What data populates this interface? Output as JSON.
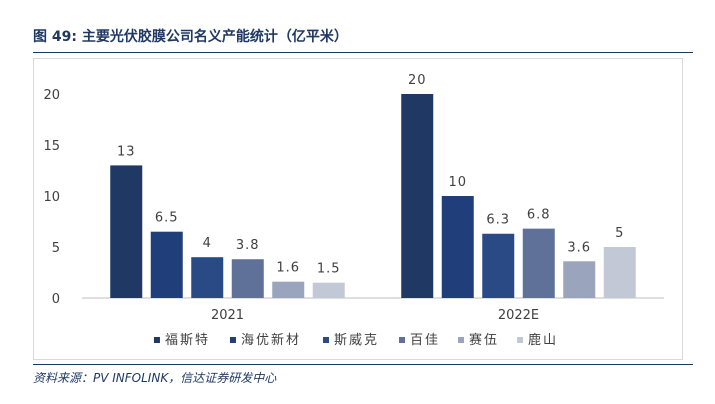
{
  "figure": {
    "title": "图 49:  主要光伏胶膜公司名义产能统计（亿平米）",
    "source": "资料来源：PV INFOLINK，信达证券研发中心"
  },
  "chart_data": {
    "type": "bar",
    "categories": [
      "2021",
      "2022E"
    ],
    "series": [
      {
        "name": "福斯特",
        "values": [
          13,
          20
        ],
        "labels": [
          "13",
          "20"
        ],
        "color": "#1f3864"
      },
      {
        "name": "海优新材",
        "values": [
          6.5,
          10
        ],
        "labels": [
          "6.5",
          "10"
        ],
        "color": "#203f7a"
      },
      {
        "name": "斯威克",
        "values": [
          4,
          6.3
        ],
        "labels": [
          "4",
          "6.3"
        ],
        "color": "#2a4a86"
      },
      {
        "name": "百佳",
        "values": [
          3.8,
          6.8
        ],
        "labels": [
          "3.8",
          "6.8"
        ],
        "color": "#5f7099"
      },
      {
        "name": "赛伍",
        "values": [
          1.6,
          3.6
        ],
        "labels": [
          "1.6",
          "3.6"
        ],
        "color": "#9aa4bd"
      },
      {
        "name": "鹿山",
        "values": [
          1.5,
          5
        ],
        "labels": [
          "1.5",
          "5"
        ],
        "color": "#c3c8d6"
      }
    ],
    "ylim": [
      0,
      20
    ],
    "yticks": [
      "0",
      "5",
      "10",
      "15",
      "20"
    ],
    "grid": false,
    "legend": "bottom",
    "title": "",
    "xlabel": "",
    "ylabel": ""
  }
}
